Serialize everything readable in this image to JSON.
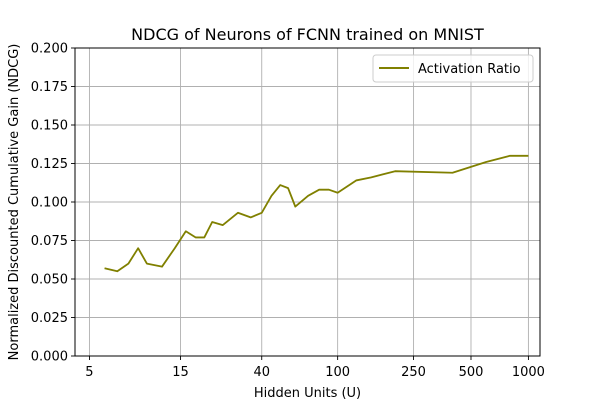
{
  "chart_data": {
    "type": "line",
    "title": "NDCG of Neurons of FCNN trained on MNIST",
    "xlabel": "Hidden Units (U)",
    "ylabel": "Normalized Discounted Cumulative Gain (NDCG)",
    "x_scale": "log",
    "xlim": [
      4.2,
      1150
    ],
    "ylim": [
      0,
      0.2
    ],
    "x_ticks": [
      5,
      15,
      40,
      100,
      250,
      500,
      1000
    ],
    "x_tick_labels": [
      "5",
      "15",
      "40",
      "100",
      "250",
      "500",
      "1000"
    ],
    "y_ticks": [
      0,
      0.025,
      0.05,
      0.075,
      0.1,
      0.125,
      0.15,
      0.175,
      0.2
    ],
    "y_tick_labels": [
      "0.000",
      "0.025",
      "0.050",
      "0.075",
      "0.100",
      "0.125",
      "0.150",
      "0.175",
      "0.200"
    ],
    "grid": true,
    "legend_position": "top-right",
    "series": [
      {
        "name": "Activation Ratio",
        "color": "#808000",
        "x": [
          6,
          7,
          8,
          9,
          10,
          12,
          14,
          16,
          18,
          20,
          22,
          25,
          30,
          35,
          40,
          45,
          50,
          55,
          60,
          70,
          80,
          90,
          100,
          125,
          150,
          200,
          400,
          600,
          800,
          1000
        ],
        "y": [
          0.057,
          0.055,
          0.06,
          0.07,
          0.06,
          0.058,
          0.07,
          0.081,
          0.077,
          0.077,
          0.087,
          0.085,
          0.093,
          0.09,
          0.093,
          0.104,
          0.111,
          0.109,
          0.097,
          0.104,
          0.108,
          0.108,
          0.106,
          0.114,
          0.116,
          0.12,
          0.119,
          0.126,
          0.13,
          0.13
        ]
      }
    ]
  }
}
